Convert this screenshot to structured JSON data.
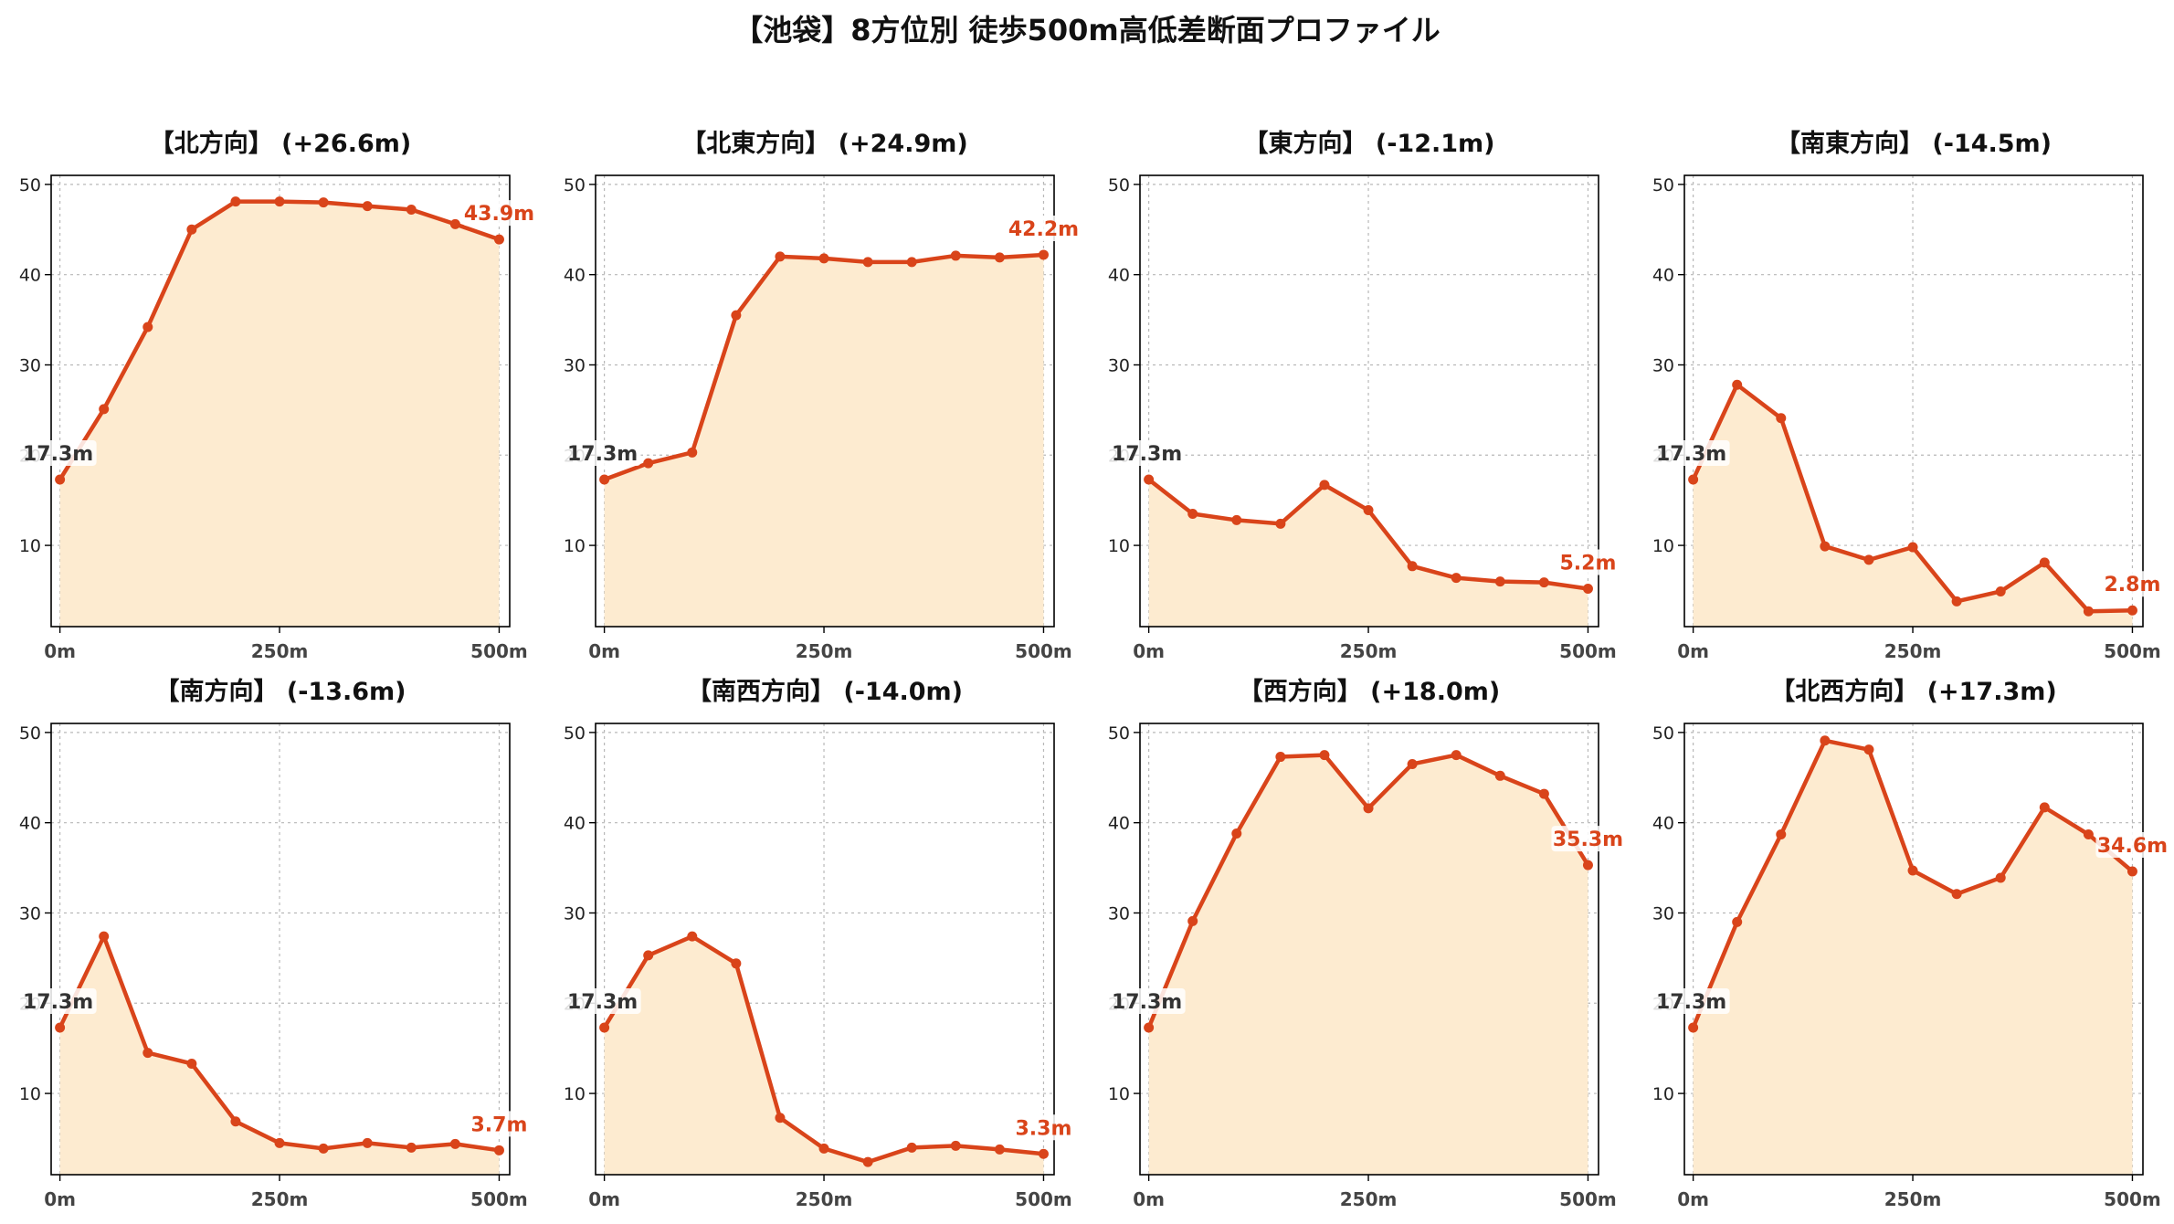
{
  "title": "【池袋】8方位別 徒歩500m高低差断面プロファイル",
  "chart_data": [
    {
      "type": "area",
      "title": "【北方向】 (+26.6m)",
      "x": [
        0,
        50,
        100,
        150,
        200,
        250,
        300,
        350,
        400,
        450,
        500
      ],
      "y": [
        17.3,
        25.1,
        34.2,
        45.0,
        48.1,
        48.1,
        48.0,
        47.6,
        47.2,
        45.6,
        43.9
      ],
      "start_label": "17.3m",
      "end_label": "43.9m"
    },
    {
      "type": "area",
      "title": "【北東方向】 (+24.9m)",
      "x": [
        0,
        50,
        100,
        150,
        200,
        250,
        300,
        350,
        400,
        450,
        500
      ],
      "y": [
        17.3,
        19.1,
        20.3,
        35.5,
        42.0,
        41.8,
        41.4,
        41.4,
        42.1,
        41.9,
        42.2
      ],
      "start_label": "17.3m",
      "end_label": "42.2m"
    },
    {
      "type": "area",
      "title": "【東方向】 (-12.1m)",
      "x": [
        0,
        50,
        100,
        150,
        200,
        250,
        300,
        350,
        400,
        450,
        500
      ],
      "y": [
        17.3,
        13.5,
        12.8,
        12.4,
        16.7,
        13.9,
        7.7,
        6.4,
        6.0,
        5.9,
        5.2
      ],
      "start_label": "17.3m",
      "end_label": "5.2m"
    },
    {
      "type": "area",
      "title": "【南東方向】 (-14.5m)",
      "x": [
        0,
        50,
        100,
        150,
        200,
        250,
        300,
        350,
        400,
        450,
        500
      ],
      "y": [
        17.3,
        27.8,
        24.1,
        9.9,
        8.4,
        9.8,
        3.8,
        4.9,
        8.1,
        2.7,
        2.8
      ],
      "start_label": "17.3m",
      "end_label": "2.8m"
    },
    {
      "type": "area",
      "title": "【南方向】 (-13.6m)",
      "x": [
        0,
        50,
        100,
        150,
        200,
        250,
        300,
        350,
        400,
        450,
        500
      ],
      "y": [
        17.3,
        27.4,
        14.5,
        13.3,
        6.9,
        4.5,
        3.9,
        4.5,
        4.0,
        4.4,
        3.7
      ],
      "start_label": "17.3m",
      "end_label": "3.7m"
    },
    {
      "type": "area",
      "title": "【南西方向】 (-14.0m)",
      "x": [
        0,
        50,
        100,
        150,
        200,
        250,
        300,
        350,
        400,
        450,
        500
      ],
      "y": [
        17.3,
        25.3,
        27.4,
        24.4,
        7.3,
        3.9,
        2.4,
        4.0,
        4.2,
        3.8,
        3.3
      ],
      "start_label": "17.3m",
      "end_label": "3.3m"
    },
    {
      "type": "area",
      "title": "【西方向】 (+18.0m)",
      "x": [
        0,
        50,
        100,
        150,
        200,
        250,
        300,
        350,
        400,
        450,
        500
      ],
      "y": [
        17.3,
        29.1,
        38.8,
        47.3,
        47.5,
        41.6,
        46.5,
        47.5,
        45.2,
        43.2,
        35.3
      ],
      "start_label": "17.3m",
      "end_label": "35.3m"
    },
    {
      "type": "area",
      "title": "【北西方向】 (+17.3m)",
      "x": [
        0,
        50,
        100,
        150,
        200,
        250,
        300,
        350,
        400,
        450,
        500
      ],
      "y": [
        17.3,
        29.0,
        38.7,
        49.1,
        48.1,
        34.7,
        32.1,
        33.9,
        41.7,
        38.7,
        34.6
      ],
      "start_label": "17.3m",
      "end_label": "34.6m"
    }
  ],
  "axes": {
    "ylim": [
      1,
      51
    ],
    "xlim": [
      -10,
      512
    ],
    "yticks": [
      "10",
      "20",
      "30",
      "40",
      "50"
    ],
    "xticks": [
      "0m",
      "250m",
      "500m"
    ],
    "xtick_values": [
      0,
      250,
      500
    ]
  },
  "colors": {
    "line": "#d9441a",
    "fill": "#fdebd0",
    "grid": "#b8b8b8"
  }
}
